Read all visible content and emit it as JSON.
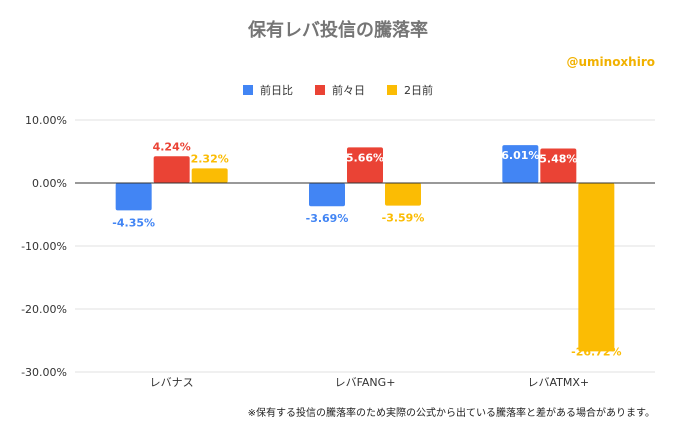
{
  "title": "保有レバ投信の騰落率",
  "handle": "@uminoxhiro",
  "note": "※保有する投信の騰落率のため実際の公式から出ている騰落率と差がある場合があります。",
  "colors": {
    "series": [
      "#4285f4",
      "#ea4335",
      "#fbbc04"
    ],
    "grid": "#e0e0e0",
    "zero": "#333333"
  },
  "chart_data": {
    "type": "bar",
    "title": "保有レバ投信の騰落率",
    "categories": [
      "レバナス",
      "レバFANG+",
      "レバATMX+"
    ],
    "series": [
      {
        "name": "前日比",
        "values": [
          -4.35,
          -3.69,
          6.01
        ]
      },
      {
        "name": "前々日",
        "values": [
          4.24,
          5.66,
          5.48
        ]
      },
      {
        "name": "2日前",
        "values": [
          2.32,
          -3.59,
          -26.72
        ]
      }
    ],
    "data_labels": [
      [
        "-4.35%",
        "-3.69%",
        "6.01%"
      ],
      [
        "4.24%",
        "5.66%",
        "5.48%"
      ],
      [
        "2.32%",
        "-3.59%",
        "-26.72%"
      ]
    ],
    "yticks": [
      "10.00%",
      "0.00%",
      "-10.00%",
      "-20.00%",
      "-30.00%"
    ],
    "ytick_values": [
      10,
      0,
      -10,
      -20,
      -30
    ],
    "ylim": [
      -30,
      10
    ],
    "grid": true,
    "legend_position": "top"
  }
}
